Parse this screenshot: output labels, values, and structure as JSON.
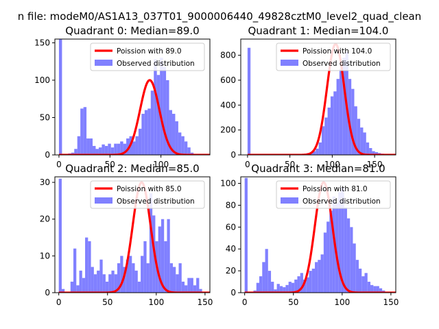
{
  "figure": {
    "suptitle": "n file: modeM0/AS1A13_037T01_9000006440_49828cztM0_level2_quad_clean"
  },
  "colors": {
    "poisson": "#ff0000",
    "hist": "#8080ff"
  },
  "chart_data": [
    {
      "type": "bar",
      "title": "Quadrant 0: Median=89.0",
      "legend": [
        "Poission with 89.0",
        "Observed distribution"
      ],
      "legend_position": "upper right",
      "xlim": [
        -4,
        148
      ],
      "ylim": [
        0,
        155
      ],
      "xticks": [
        0,
        50,
        100
      ],
      "yticks": [
        0,
        50,
        100,
        150
      ],
      "poisson_mean": 89.0,
      "poisson_peak": 100,
      "bin_width": 3,
      "bin_start": 0,
      "hist_counts": [
        155,
        1,
        0,
        2,
        3,
        8,
        25,
        62,
        64,
        22,
        22,
        12,
        8,
        10,
        14,
        12,
        15,
        10,
        15,
        15,
        18,
        15,
        22,
        25,
        18,
        25,
        35,
        55,
        60,
        62,
        86,
        128,
        107,
        130,
        118,
        100,
        60,
        55,
        45,
        30,
        25,
        18,
        10,
        3
      ]
    },
    {
      "type": "bar",
      "title": "Quadrant 1: Median=104.0",
      "legend": [
        "Poission with 104.0",
        "Observed distribution"
      ],
      "legend_position": "upper right",
      "xlim": [
        -8,
        175
      ],
      "ylim": [
        0,
        930
      ],
      "xticks": [
        0,
        50,
        100,
        150
      ],
      "yticks": [
        0,
        200,
        400,
        600,
        800
      ],
      "poisson_mean": 104.0,
      "poisson_peak": 890,
      "bin_width": 3.5,
      "bin_start": 0,
      "hist_counts": [
        860,
        5,
        2,
        2,
        2,
        2,
        2,
        2,
        2,
        2,
        2,
        3,
        3,
        3,
        4,
        5,
        5,
        6,
        6,
        10,
        15,
        20,
        30,
        50,
        100,
        230,
        300,
        380,
        470,
        510,
        610,
        690,
        780,
        830,
        610,
        530,
        390,
        290,
        220,
        180,
        100,
        55,
        30,
        22,
        15,
        10,
        6,
        3
      ]
    },
    {
      "type": "bar",
      "title": "Quadrant 2: Median=85.0",
      "legend": [
        "Poission with 85.0",
        "Observed distribution"
      ],
      "legend_position": "upper right",
      "xlim": [
        -4,
        155
      ],
      "ylim": [
        0,
        31.5
      ],
      "xticks": [
        0,
        50,
        100,
        150
      ],
      "yticks": [
        0,
        10,
        20,
        30
      ],
      "poisson_mean": 85.0,
      "poisson_peak": 30,
      "bin_width": 3,
      "bin_start": 0,
      "hist_counts": [
        31,
        1,
        0,
        0,
        3,
        12,
        2,
        6,
        4,
        15,
        14,
        7,
        5,
        6,
        9,
        5,
        3,
        5,
        6,
        5,
        8,
        10,
        7,
        9,
        10,
        8,
        6,
        3,
        10,
        14,
        8,
        27,
        21,
        14,
        18,
        20,
        14,
        20,
        8,
        7,
        5,
        8,
        3,
        2,
        4,
        4,
        2,
        4,
        1
      ]
    },
    {
      "type": "bar",
      "title": "Quadrant 3: Median=81.0",
      "legend": [
        "Poission with 81.0",
        "Observed distribution"
      ],
      "legend_position": "upper right",
      "xlim": [
        -4,
        155
      ],
      "ylim": [
        0,
        106
      ],
      "xticks": [
        0,
        50,
        100,
        150
      ],
      "yticks": [
        0,
        20,
        40,
        60,
        80,
        100
      ],
      "poisson_mean": 81.0,
      "poisson_peak": 101,
      "bin_width": 3,
      "bin_start": 0,
      "hist_counts": [
        105,
        0,
        0,
        2,
        9,
        15,
        28,
        40,
        20,
        10,
        3,
        8,
        6,
        5,
        7,
        10,
        9,
        12,
        15,
        18,
        12,
        14,
        20,
        22,
        28,
        30,
        35,
        55,
        65,
        75,
        88,
        82,
        92,
        96,
        78,
        68,
        60,
        45,
        30,
        22,
        15,
        18,
        10,
        7,
        6,
        6,
        4,
        2
      ]
    }
  ]
}
